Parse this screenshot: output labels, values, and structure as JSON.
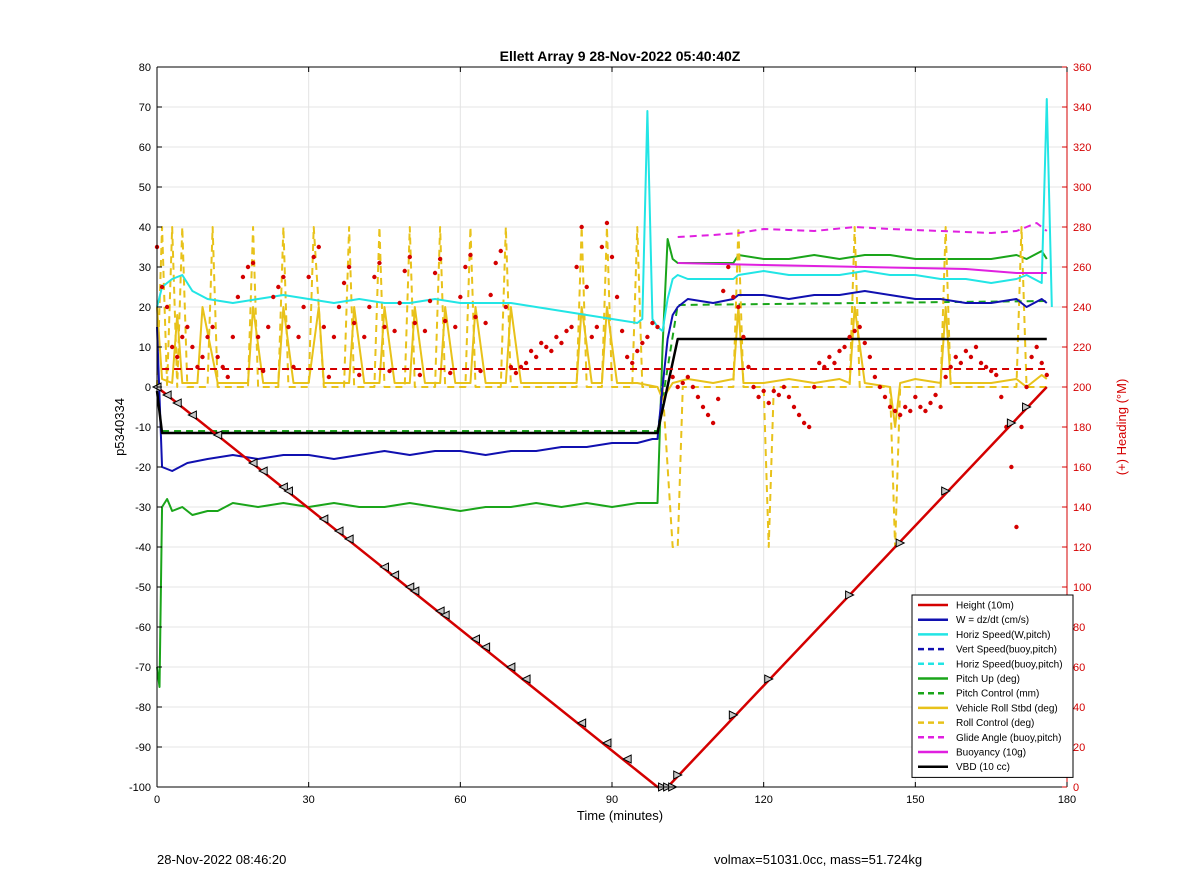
{
  "footer": {
    "left": "28-Nov-2022 08:46:20",
    "right": "volmax=51031.0cc, mass=51.724kg"
  },
  "chart_data": {
    "type": "line",
    "title": "Ellett Array 9 28-Nov-2022 05:40:40Z",
    "xlabel": "Time (minutes)",
    "ylabel": "p5340334",
    "y2label": "(+) Heading (°M)",
    "xlim": [
      0,
      180
    ],
    "ylim": [
      -100,
      80
    ],
    "y2lim": [
      0,
      360
    ],
    "xticks": [
      0,
      30,
      60,
      90,
      120,
      150,
      180
    ],
    "yticks": [
      -100,
      -90,
      -80,
      -70,
      -60,
      -50,
      -40,
      -30,
      -20,
      -10,
      0,
      10,
      20,
      30,
      40,
      50,
      60,
      70,
      80
    ],
    "y2ticks": [
      0,
      20,
      40,
      60,
      80,
      100,
      120,
      140,
      160,
      180,
      200,
      220,
      240,
      260,
      280,
      300,
      320,
      340,
      360
    ],
    "grid": true,
    "legend_position": "bottom-right",
    "colors": {
      "red": "#d40000",
      "blue": "#1010b0",
      "cyan": "#22e5e5",
      "green": "#1aa51a",
      "yellow": "#e8c21a",
      "magenta": "#e020e0",
      "black": "#000000"
    },
    "series": [
      {
        "name": "Height (10m)",
        "color": "red",
        "dash": false,
        "width": 2.5,
        "x": [
          0,
          99,
          100,
          101,
          176
        ],
        "y": [
          0,
          -100,
          -100,
          -100,
          0
        ]
      },
      {
        "name": "W = dz/dt (cm/s)",
        "color": "blue",
        "dash": false,
        "width": 2,
        "x": [
          0,
          1,
          3,
          6,
          10,
          15,
          20,
          25,
          30,
          35,
          40,
          45,
          50,
          55,
          60,
          65,
          70,
          75,
          80,
          85,
          90,
          95,
          98,
          99,
          100,
          101,
          102,
          103,
          105,
          110,
          114,
          115,
          120,
          125,
          130,
          135,
          140,
          145,
          150,
          155,
          160,
          165,
          170,
          172,
          175,
          176
        ],
        "y": [
          15,
          -20,
          -21,
          -19,
          -18,
          -17,
          -18,
          -17,
          -17,
          -18,
          -17,
          -16,
          -17,
          -16,
          -16,
          -17,
          -16,
          -16,
          -15,
          -15,
          -14,
          -14,
          -13,
          -13,
          0,
          12,
          18,
          20,
          22,
          21,
          22,
          23,
          23,
          22,
          23,
          23,
          24,
          23,
          22,
          22,
          21,
          21,
          22,
          20,
          22,
          21
        ]
      },
      {
        "name": "Horiz Speed(W,pitch)",
        "color": "cyan",
        "dash": false,
        "width": 2,
        "x": [
          0,
          1,
          3,
          5,
          7,
          10,
          15,
          20,
          25,
          30,
          35,
          40,
          45,
          50,
          55,
          60,
          65,
          70,
          75,
          80,
          85,
          90,
          95,
          96,
          97,
          98,
          99,
          100,
          101,
          102,
          103,
          105,
          110,
          114,
          115,
          120,
          125,
          130,
          135,
          140,
          145,
          150,
          155,
          160,
          165,
          170,
          172,
          175,
          176,
          177
        ],
        "y": [
          20,
          25,
          27,
          28,
          24,
          22,
          21,
          22,
          23,
          22,
          21,
          22,
          21,
          21,
          22,
          21,
          21,
          21,
          20,
          19,
          18,
          17,
          16,
          17,
          69,
          17,
          15,
          14,
          22,
          27,
          28,
          27,
          27,
          27,
          28,
          29,
          28,
          28,
          28,
          29,
          28,
          28,
          27,
          27,
          26,
          27,
          28,
          26,
          72,
          20
        ]
      },
      {
        "name": "Vert Speed(buoy,pitch)",
        "color": "blue",
        "dash": true,
        "width": 2,
        "x": [],
        "y": []
      },
      {
        "name": "Horiz Speed(buoy,pitch)",
        "color": "cyan",
        "dash": true,
        "width": 2,
        "x": [],
        "y": []
      },
      {
        "name": "Pitch Up (deg)",
        "color": "green",
        "dash": false,
        "width": 2,
        "x": [
          0,
          0.5,
          1,
          2,
          3,
          5,
          7,
          10,
          12,
          15,
          20,
          25,
          30,
          35,
          40,
          45,
          50,
          55,
          60,
          65,
          70,
          75,
          80,
          85,
          90,
          95,
          98,
          99,
          100,
          101,
          102,
          103,
          105,
          110,
          114,
          115,
          120,
          125,
          130,
          135,
          140,
          145,
          150,
          155,
          160,
          165,
          170,
          172,
          175,
          176
        ],
        "y": [
          -70,
          -75,
          -30,
          -28,
          -31,
          -30,
          -32,
          -31,
          -31,
          -29,
          -30,
          -29,
          -30,
          -29,
          -30,
          -30,
          -29,
          -30,
          -31,
          -30,
          -30,
          -29,
          -30,
          -29,
          -30,
          -29,
          -29,
          -29,
          10,
          37,
          32,
          31,
          31,
          31,
          31,
          33,
          32,
          32,
          33,
          32,
          33,
          33,
          32,
          32,
          32,
          32,
          33,
          32,
          34,
          32
        ]
      },
      {
        "name": "Pitch Control (mm)",
        "color": "green",
        "dash": true,
        "width": 2,
        "x": [
          1,
          99,
          103,
          176
        ],
        "y": [
          -11,
          -11,
          20.5,
          21.5
        ]
      },
      {
        "name": "Vehicle Roll Stbd (deg)",
        "color": "yellow",
        "dash": false,
        "width": 2,
        "x": [
          0,
          1,
          3,
          4,
          5,
          8,
          9,
          12,
          14,
          18,
          19,
          21,
          24,
          25,
          27,
          30,
          32,
          33,
          36,
          38,
          39,
          41,
          44,
          45,
          47,
          50,
          51,
          53,
          56,
          57,
          59,
          62,
          63,
          65,
          69,
          70,
          72,
          80,
          83,
          84,
          86,
          88,
          89,
          91,
          94,
          95,
          99,
          100,
          102,
          105,
          110,
          114,
          115,
          116,
          120,
          125,
          130,
          135,
          137,
          138,
          140,
          145,
          146,
          147,
          150,
          155,
          156,
          157,
          160,
          165,
          170,
          172,
          175,
          176
        ],
        "y": [
          20,
          2,
          1,
          18,
          1,
          1,
          20,
          1,
          1,
          1,
          20,
          1,
          1,
          20,
          1,
          1,
          20,
          1,
          1,
          1,
          20,
          1,
          1,
          20,
          1,
          1,
          20,
          1,
          1,
          20,
          1,
          1,
          20,
          1,
          1,
          20,
          1,
          1,
          1,
          20,
          1,
          1,
          20,
          1,
          1,
          1,
          0,
          -3,
          1,
          2,
          1,
          2,
          20,
          1,
          1,
          2,
          1,
          2,
          1,
          20,
          1,
          0,
          -10,
          1,
          2,
          1,
          20,
          1,
          1,
          1,
          2,
          0,
          3,
          2
        ]
      },
      {
        "name": "Roll Control (deg)",
        "color": "yellow",
        "dash": true,
        "width": 2,
        "x": [
          0,
          1,
          2,
          3,
          4,
          5,
          6,
          10,
          11,
          12,
          18,
          19,
          20,
          24,
          25,
          26,
          30,
          31,
          33,
          37,
          38,
          39,
          43,
          44,
          45,
          49,
          50,
          51,
          55,
          56,
          57,
          61,
          62,
          63,
          68,
          69,
          70,
          83,
          84,
          85,
          88,
          89,
          90,
          94,
          95,
          96,
          100,
          102,
          103,
          104,
          114,
          115,
          116,
          120,
          121,
          122,
          137,
          138,
          139,
          145,
          146,
          147,
          155,
          156,
          157,
          170,
          171,
          172,
          176
        ],
        "y": [
          0,
          40,
          0,
          40,
          0,
          40,
          0,
          0,
          40,
          0,
          0,
          40,
          0,
          0,
          40,
          0,
          0,
          40,
          0,
          0,
          40,
          0,
          0,
          40,
          0,
          0,
          40,
          0,
          0,
          40,
          0,
          0,
          40,
          0,
          0,
          40,
          0,
          0,
          40,
          0,
          0,
          40,
          0,
          0,
          40,
          0,
          0,
          -40,
          -40,
          0,
          0,
          40,
          0,
          0,
          -40,
          0,
          0,
          40,
          0,
          0,
          -40,
          0,
          0,
          40,
          0,
          0,
          40,
          0,
          0
        ]
      },
      {
        "name": "Glide Angle (buoy,pitch)",
        "color": "magenta",
        "dash": true,
        "width": 2,
        "x": [
          103,
          110,
          115,
          120,
          130,
          138,
          145,
          155,
          165,
          170,
          172,
          174,
          176
        ],
        "y": [
          37.5,
          38,
          38.5,
          39.5,
          39,
          40,
          39.5,
          39,
          38.5,
          39,
          40,
          41,
          39
        ]
      },
      {
        "name": "Buoyancy (10g)",
        "color": "magenta",
        "dash": false,
        "width": 2,
        "x": [
          103,
          120,
          140,
          160,
          170,
          176
        ],
        "y": [
          31,
          30.5,
          30,
          29.5,
          28.5,
          28.5
        ]
      },
      {
        "name": "VBD (10 cc)",
        "color": "black",
        "dash": false,
        "width": 2.5,
        "x": [
          0,
          1,
          5,
          99,
          103,
          176
        ],
        "y": [
          -1,
          -11.5,
          -11.5,
          -11.5,
          12,
          12
        ]
      }
    ],
    "extra_lines": [
      {
        "color": "red",
        "dash": true,
        "width": 2,
        "axis": "y2",
        "x": [
          1,
          176
        ],
        "y": [
          209,
          209
        ]
      }
    ],
    "heading_points": {
      "color": "red",
      "axis": "y2",
      "x": [
        0,
        1,
        2,
        3,
        4,
        5,
        6,
        7,
        8,
        9,
        10,
        11,
        12,
        13,
        14,
        15,
        16,
        17,
        18,
        19,
        20,
        21,
        22,
        23,
        24,
        25,
        26,
        27,
        28,
        29,
        30,
        31,
        32,
        33,
        34,
        35,
        36,
        37,
        38,
        39,
        40,
        41,
        42,
        43,
        44,
        45,
        46,
        47,
        48,
        49,
        50,
        51,
        52,
        53,
        54,
        55,
        56,
        57,
        58,
        59,
        60,
        61,
        62,
        63,
        64,
        65,
        66,
        67,
        68,
        69,
        70,
        71,
        72,
        73,
        74,
        75,
        76,
        77,
        78,
        79,
        80,
        81,
        82,
        83,
        84,
        85,
        86,
        87,
        88,
        89,
        90,
        91,
        92,
        93,
        94,
        95,
        96,
        97,
        98,
        99,
        102,
        103,
        104,
        105,
        106,
        107,
        108,
        109,
        110,
        111,
        112,
        113,
        114,
        115,
        116,
        117,
        118,
        119,
        120,
        121,
        122,
        123,
        124,
        125,
        126,
        127,
        128,
        129,
        130,
        131,
        132,
        133,
        134,
        135,
        136,
        137,
        138,
        139,
        140,
        141,
        142,
        143,
        144,
        145,
        146,
        147,
        148,
        149,
        150,
        151,
        152,
        153,
        154,
        155,
        156,
        157,
        158,
        159,
        160,
        161,
        162,
        163,
        164,
        165,
        166,
        167,
        168,
        169,
        170,
        171,
        172,
        173,
        174,
        175,
        176
      ],
      "y": [
        270,
        250,
        240,
        220,
        215,
        225,
        230,
        220,
        210,
        215,
        225,
        230,
        215,
        210,
        205,
        225,
        245,
        255,
        260,
        262,
        225,
        208,
        230,
        245,
        250,
        255,
        230,
        210,
        225,
        240,
        255,
        265,
        270,
        230,
        205,
        225,
        240,
        252,
        260,
        232,
        206,
        225,
        240,
        255,
        262,
        230,
        208,
        228,
        242,
        258,
        265,
        232,
        206,
        228,
        243,
        257,
        264,
        233,
        207,
        230,
        245,
        260,
        266,
        235,
        208,
        232,
        246,
        262,
        268,
        240,
        210,
        207,
        210,
        212,
        218,
        215,
        222,
        220,
        218,
        225,
        222,
        228,
        230,
        260,
        280,
        250,
        225,
        230,
        270,
        282,
        265,
        245,
        228,
        215,
        212,
        218,
        222,
        225,
        232,
        230,
        205,
        200,
        202,
        205,
        200,
        195,
        190,
        186,
        182,
        194,
        248,
        260,
        245,
        240,
        225,
        210,
        200,
        195,
        198,
        192,
        198,
        196,
        200,
        195,
        190,
        186,
        182,
        180,
        200,
        212,
        210,
        215,
        212,
        218,
        220,
        225,
        228,
        230,
        222,
        215,
        205,
        200,
        195,
        190,
        188,
        186,
        190,
        188,
        195,
        190,
        188,
        192,
        196,
        190,
        205,
        210,
        215,
        212,
        218,
        215,
        220,
        212,
        210,
        208,
        206,
        195,
        180,
        160,
        130,
        180,
        200,
        215,
        220,
        212,
        206
      ]
    },
    "markers": {
      "color": "black",
      "x": [
        0,
        2,
        4,
        7,
        12,
        19,
        21,
        25,
        26,
        33,
        36,
        38,
        45,
        47,
        50,
        51,
        56,
        57,
        63,
        65,
        70,
        73,
        84,
        89,
        93,
        100,
        101,
        102,
        103,
        114,
        121,
        137,
        147,
        156,
        169,
        172
      ],
      "y": [
        0,
        -2,
        -4,
        -7,
        -12,
        -19,
        -21,
        -25,
        -26,
        -33,
        -36,
        -38,
        -45,
        -47,
        -50,
        -51,
        -56,
        -57,
        -63,
        -65,
        -70,
        -73,
        -84,
        -89,
        -93,
        -100,
        -100,
        -100,
        -97,
        -82,
        -73,
        -52,
        -39,
        -26,
        -9,
        -5
      ]
    }
  }
}
